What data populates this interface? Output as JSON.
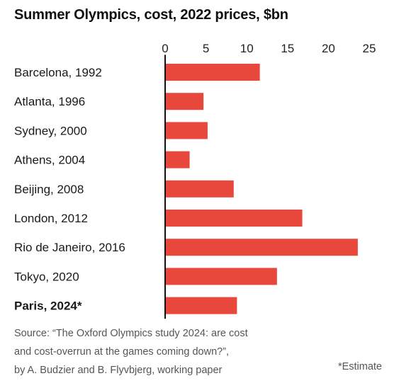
{
  "chart_data": {
    "type": "bar",
    "orientation": "horizontal",
    "title": "Summer Olympics, cost, 2022 prices, $bn",
    "categories": [
      "Barcelona, 1992",
      "Atlanta, 1996",
      "Sydney, 2000",
      "Athens, 2004",
      "Beijing, 2008",
      "London, 2012",
      "Rio de Janeiro, 2016",
      "Tokyo, 2020",
      "Paris, 2024*"
    ],
    "values": [
      11.6,
      4.7,
      5.2,
      3.0,
      8.4,
      16.8,
      23.6,
      13.7,
      8.8
    ],
    "highlighted_category": "Paris, 2024*",
    "xlim": [
      0,
      25
    ],
    "xticks": [
      0,
      5,
      10,
      15,
      20,
      25
    ],
    "axis_position": "top",
    "bar_color": "#e8483b",
    "grid": false
  },
  "source": {
    "lines": [
      "Source: “The Oxford Olympics study 2024: are cost",
      "and cost-overrun at the games coming down?”,",
      "by A. Budzier and B. Flyvbjerg, working paper"
    ]
  },
  "footnote": "*Estimate"
}
